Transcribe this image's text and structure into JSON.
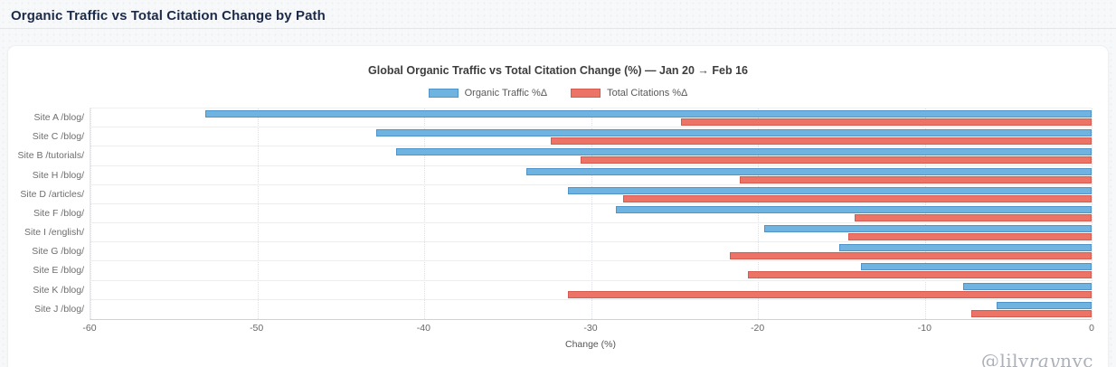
{
  "page": {
    "title": "Organic Traffic vs Total Citation Change by Path",
    "watermark": {
      "prefix": "@lily",
      "italic": "ray",
      "suffix": "nyc"
    }
  },
  "chart_data": {
    "type": "bar",
    "orientation": "horizontal",
    "title": "Global Organic Traffic vs Total Citation Change (%) — Jan 20 → Feb 16",
    "xlabel": "Change (%)",
    "xlim": [
      -60,
      0
    ],
    "x_ticks": [
      -60,
      -50,
      -40,
      -30,
      -20,
      -10,
      0
    ],
    "grid": true,
    "legend_position": "top",
    "categories": [
      "Site A /blog/",
      "Site C /blog/",
      "Site B /tutorials/",
      "Site H /blog/",
      "Site D /articles/",
      "Site F /blog/",
      "Site I /english/",
      "Site G /blog/",
      "Site E /blog/",
      "Site K /blog/",
      "Site J /blog/"
    ],
    "series": [
      {
        "name": "Organic Traffic %Δ",
        "color": "#6fb3e0",
        "border_color": "#5093c8",
        "values": [
          -53.1,
          -42.9,
          -41.7,
          -33.9,
          -31.4,
          -28.5,
          -19.6,
          -15.1,
          -13.8,
          -7.7,
          -5.7
        ]
      },
      {
        "name": "Total Citations %Δ",
        "color": "#ec7467",
        "border_color": "#d55b50",
        "values": [
          -24.6,
          -32.4,
          -30.6,
          -21.1,
          -28.1,
          -14.2,
          -14.6,
          -21.7,
          -20.6,
          -31.4,
          -7.2
        ]
      }
    ]
  }
}
